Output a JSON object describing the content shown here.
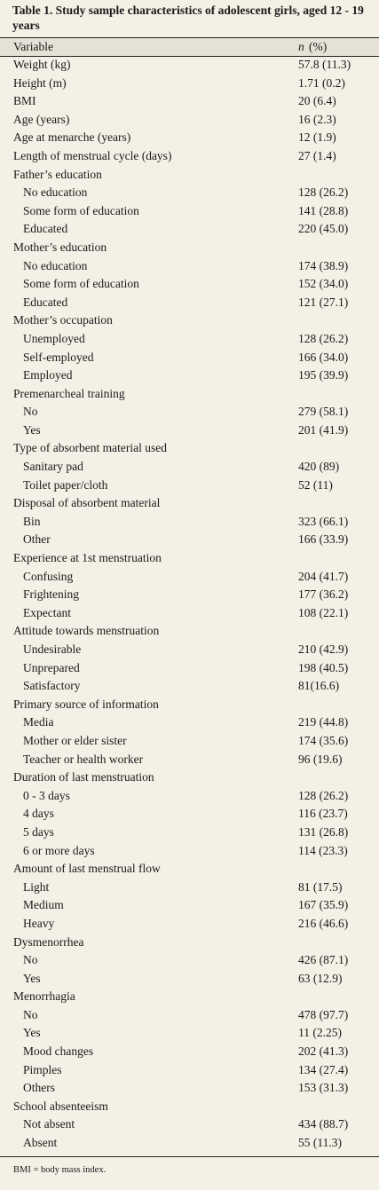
{
  "table": {
    "title": "Table 1. Study sample characteristics of adolescent girls, aged 12 - 19 years",
    "header": {
      "variable": "Variable",
      "symbol": "n",
      "unit": "(%)"
    },
    "rows": [
      {
        "label": "Weight (kg)",
        "value": "57.8 (11.3)"
      },
      {
        "label": "Height (m)",
        "value": "1.71 (0.2)"
      },
      {
        "label": "BMI",
        "value": "20 (6.4)"
      },
      {
        "label": "Age (years)",
        "value": "16 (2.3)"
      },
      {
        "label": "Age at menarche (years)",
        "value": "12 (1.9)"
      },
      {
        "label": "Length of menstrual cycle (days)",
        "value": "27 (1.4)"
      },
      {
        "label": "Father’s education",
        "rows": [
          [
            "No education",
            "128 (26.2)"
          ],
          [
            "Some form of education",
            "141 (28.8)"
          ],
          [
            "Educated",
            "220 (45.0)"
          ]
        ]
      },
      {
        "label": "Mother’s education",
        "rows": [
          [
            "No education",
            "174 (38.9)"
          ],
          [
            "Some form of education",
            "152 (34.0)"
          ],
          [
            "Educated",
            "121 (27.1)"
          ]
        ]
      },
      {
        "label": "Mother’s occupation",
        "rows": [
          [
            "Unemployed",
            "128 (26.2)"
          ],
          [
            "Self-employed",
            "166 (34.0)"
          ],
          [
            "Employed",
            "195 (39.9)"
          ]
        ]
      },
      {
        "label": "Premenarcheal training",
        "rows": [
          [
            "No",
            "279 (58.1)"
          ],
          [
            "Yes",
            "201 (41.9)"
          ]
        ]
      },
      {
        "label": "Type of absorbent material used",
        "rows": [
          [
            "Sanitary pad",
            "420 (89)"
          ],
          [
            "Toilet paper/cloth",
            "52 (11)"
          ]
        ]
      },
      {
        "label": "Disposal of absorbent material",
        "rows": [
          [
            "Bin",
            "323 (66.1)"
          ],
          [
            "Other",
            "166 (33.9)"
          ]
        ]
      },
      {
        "label": "Experience at 1st menstruation",
        "rows": [
          [
            "Confusing",
            "204 (41.7)"
          ],
          [
            "Frightening",
            "177 (36.2)"
          ],
          [
            "Expectant",
            "108 (22.1)"
          ]
        ]
      },
      {
        "label": "Attitude towards menstruation",
        "rows": [
          [
            "Undesirable",
            "210 (42.9)"
          ],
          [
            "Unprepared",
            "198 (40.5)"
          ],
          [
            "Satisfactory",
            "81(16.6)"
          ]
        ]
      },
      {
        "label": "Primary source of information",
        "rows": [
          [
            "Media",
            "219 (44.8)"
          ],
          [
            "Mother or elder sister",
            "174 (35.6)"
          ],
          [
            "Teacher or health worker",
            "96 (19.6)"
          ]
        ]
      },
      {
        "label": "Duration of last menstruation",
        "rows": [
          [
            "0 - 3 days",
            "128 (26.2)"
          ],
          [
            "4 days",
            "116 (23.7)"
          ],
          [
            "5 days",
            "131 (26.8)"
          ],
          [
            "6 or more days",
            "114 (23.3)"
          ]
        ]
      },
      {
        "label": "Amount of last menstrual flow",
        "rows": [
          [
            "Light",
            "81 (17.5)"
          ],
          [
            "Medium",
            "167 (35.9)"
          ],
          [
            "Heavy",
            "216 (46.6)"
          ]
        ]
      },
      {
        "label": "Dysmenorrhea",
        "rows": [
          [
            "No",
            "426 (87.1)"
          ],
          [
            "Yes",
            "63 (12.9)"
          ]
        ]
      },
      {
        "label": "Menorrhagia",
        "rows": [
          [
            "No",
            "478 (97.7)"
          ],
          [
            "Yes",
            "11 (2.25)"
          ],
          [
            "Mood changes",
            "202 (41.3)"
          ],
          [
            "Pimples",
            "134 (27.4)"
          ],
          [
            "Others",
            "153 (31.3)"
          ]
        ]
      },
      {
        "label": "School absenteeism",
        "rows": [
          [
            "Not absent",
            "434 (88.7)"
          ],
          [
            "Absent",
            "55 (11.3)"
          ]
        ]
      }
    ],
    "footnote": "BMI = body mass index."
  }
}
